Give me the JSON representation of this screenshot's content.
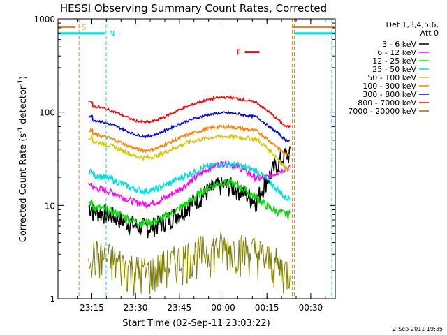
{
  "chart_data": {
    "type": "line",
    "title": "HESSI Observing Summary Count Rates, Corrected",
    "xlabel": "Start Time (02-Sep-11 23:03:22)",
    "ylabel_main": "Corrected Count Rate (s",
    "ylabel_sup1": "-1",
    "ylabel_mid": " detector",
    "ylabel_sup2": "-1",
    "ylabel_end": ")",
    "timestamp": "2-Sep-2011 19:35",
    "y_scale": "log",
    "ylim": [
      1,
      1000
    ],
    "xlim_minutes_after_start": [
      0,
      95
    ],
    "x_ticks": [
      {
        "label": "23:15",
        "minutes": 11.6
      },
      {
        "label": "23:30",
        "minutes": 26.6
      },
      {
        "label": "23:45",
        "minutes": 41.6
      },
      {
        "label": "00:00",
        "minutes": 56.6
      },
      {
        "label": "00:15",
        "minutes": 71.6
      },
      {
        "label": "00:30",
        "minutes": 86.6
      }
    ],
    "y_ticks": [
      {
        "label": "1",
        "value": 1
      },
      {
        "label": "10",
        "value": 10
      },
      {
        "label": "100",
        "value": 100
      },
      {
        "label": "1000",
        "value": 1000
      }
    ],
    "legend": {
      "header1": "Det 1,3,4,5,6,",
      "header2": "Att 0",
      "placement": "right"
    },
    "series": [
      {
        "name": "3 - 6 keV",
        "color": "#000000",
        "base": 9,
        "hump": 14,
        "tail": 35,
        "noise": 0.25
      },
      {
        "name": "6 - 12 keV",
        "color": "#ff00ff",
        "base": 16,
        "hump": 24,
        "tail": 25,
        "noise": 0.08
      },
      {
        "name": "12 - 25 keV",
        "color": "#00e000",
        "base": 10,
        "hump": 15,
        "tail": 8,
        "noise": 0.1
      },
      {
        "name": "25 - 50 keV",
        "color": "#00e0e0",
        "base": 22,
        "hump": 21,
        "tail": 12,
        "noise": 0.08
      },
      {
        "name": "50 - 100 keV",
        "color": "#d4c800",
        "base": 50,
        "hump": 38,
        "tail": 25,
        "noise": 0.05
      },
      {
        "name": "100 - 300 keV",
        "color": "#ff7f00",
        "base": 60,
        "hump": 50,
        "tail": 35,
        "noise": 0.04
      },
      {
        "name": "300 - 800 keV",
        "color": "#0000ff",
        "base": 85,
        "hump": 70,
        "tail": 50,
        "noise": 0.03
      },
      {
        "name": "800 - 7000 keV",
        "color": "#ff0000",
        "base": 120,
        "hump": 105,
        "tail": 70,
        "noise": 0.03
      },
      {
        "name": "7000 - 20000 keV",
        "color": "#808000",
        "base": 3,
        "hump": 2.5,
        "tail": 2,
        "noise": 0.5
      }
    ],
    "flags": [
      {
        "label": "S",
        "color": "#ff7f00",
        "value": 820
      },
      {
        "label": "N",
        "color": "#00e0e0",
        "value": 700
      },
      {
        "label": "F",
        "color": "#ff0000",
        "value": 440
      }
    ]
  }
}
